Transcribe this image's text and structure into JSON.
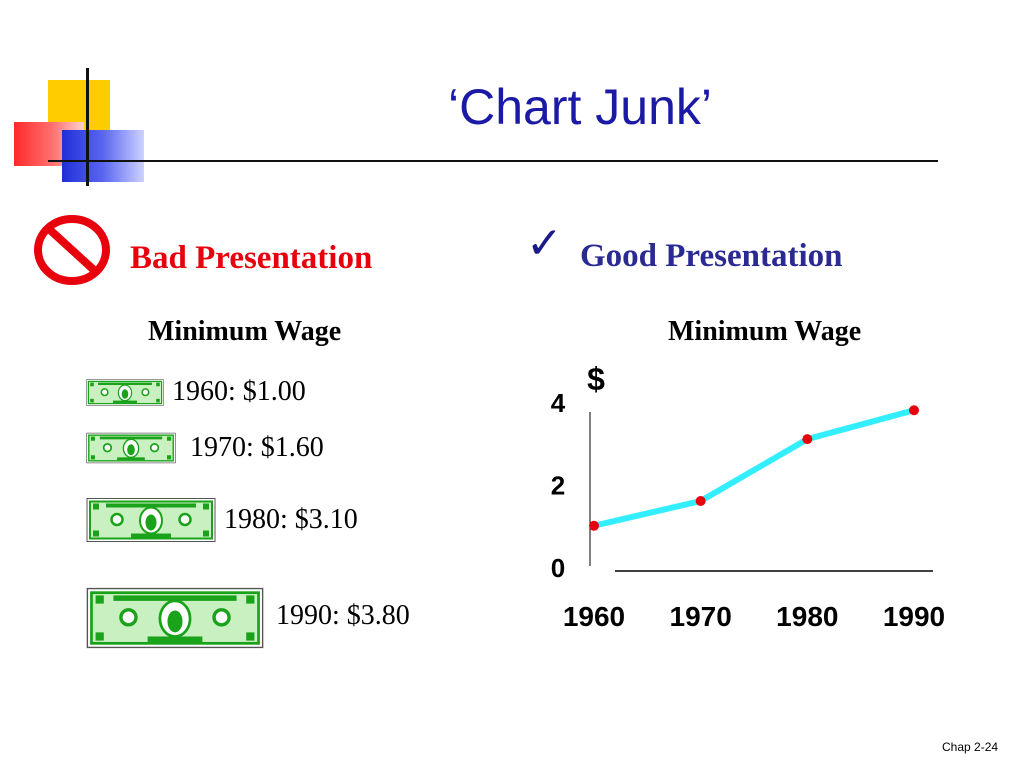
{
  "title": "‘Chart Junk’",
  "bad": {
    "heading": "Bad Presentation",
    "subtitle": "Minimum Wage",
    "icon": "prohibited-icon"
  },
  "good": {
    "heading": "Good Presentation",
    "subtitle": "Minimum Wage",
    "icon": "check-mark-icon",
    "check_glyph": "✓"
  },
  "bills": [
    {
      "label": "1960: $1.00",
      "value": 1.0
    },
    {
      "label": "1970: $1.60",
      "value": 1.6
    },
    {
      "label": "1980: $3.10",
      "value": 3.1
    },
    {
      "label": "1990: $3.80",
      "value": 3.8
    }
  ],
  "colors": {
    "title": "#1a1aa6",
    "bad": "#e8000d",
    "good": "#2a2a92",
    "line": "#33eeff",
    "marker": "#e8000d",
    "bill": "#1aa31a"
  },
  "chart_data": {
    "type": "line",
    "title": "Minimum Wage",
    "ylabel": "$",
    "xlabel": "",
    "x": [
      1960,
      1970,
      1980,
      1990
    ],
    "x_tick_labels": [
      "1960",
      "1970",
      "1980",
      "1990"
    ],
    "values": [
      1.0,
      1.6,
      3.1,
      3.8
    ],
    "ylim": [
      0,
      4
    ],
    "y_ticks": [
      0,
      2,
      4
    ],
    "y_tick_labels": [
      "0",
      "2",
      "4"
    ],
    "grid": false,
    "legend": "none"
  },
  "footer": {
    "chap": "Chap 2-24"
  }
}
